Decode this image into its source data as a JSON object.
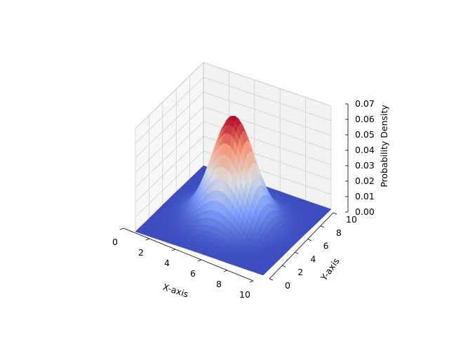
{
  "chart_data": {
    "type": "surface",
    "title": "",
    "xlabel": "X-axis",
    "ylabel": "Y-axis",
    "zlabel": "Probability Density",
    "xlim": [
      0,
      10
    ],
    "ylim": [
      0,
      10
    ],
    "zlim": [
      0,
      0.07
    ],
    "x_ticks": [
      0,
      2,
      4,
      6,
      8,
      10
    ],
    "y_ticks": [
      0,
      2,
      4,
      6,
      8,
      10
    ],
    "z_ticks": [
      "0.00",
      "0.01",
      "0.02",
      "0.03",
      "0.04",
      "0.05",
      "0.06",
      "0.07"
    ],
    "surface": {
      "function": "bivariate normal density",
      "mean_x": 5,
      "mean_y": 5,
      "sigma_x": 1.5,
      "sigma_y": 1.5,
      "peak_z": 0.0707
    },
    "colormap": "coolwarm",
    "colormap_low": "#3b4cc0",
    "colormap_mid": "#dddddd",
    "colormap_high": "#b40426",
    "grid": true,
    "pane_color": "#f2f2f2"
  }
}
